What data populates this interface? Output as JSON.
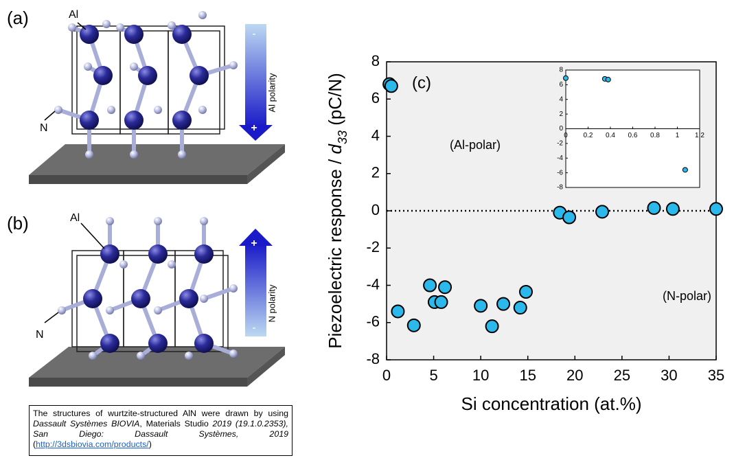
{
  "panel_a": {
    "label": "(a)",
    "atoms": [
      "Al",
      "N"
    ],
    "polarity": "Al polarity",
    "top_sign": "-",
    "bottom_sign": "+"
  },
  "panel_b": {
    "label": "(b)",
    "atoms": [
      "Al",
      "N"
    ],
    "polarity": "N polarity",
    "top_sign": "+",
    "bottom_sign": "-"
  },
  "caption": {
    "parts": [
      "The structures of wurtzite-structured AlN were drawn by using ",
      "Dassault Systèmes BIOVIA",
      ", Materials Studio ",
      "2019 (19.1.0.2353), San Diego: Dassault Systèmes, 2019",
      " (",
      "http://3dsbiovia.com/products/",
      ")"
    ]
  },
  "chart_data": [
    {
      "type": "scatter",
      "x_label": "Si concentration (at.%)",
      "y_label": [
        "Piezoelectric response / ",
        "d",
        "33",
        " (pC/N)"
      ],
      "annotations": [
        "(c)",
        "(Al-polar)",
        "(N-polar)"
      ],
      "x": [
        0.3,
        0.5,
        1.2,
        2.9,
        4.6,
        5.1,
        5.8,
        6.2,
        10.0,
        11.2,
        12.4,
        14.2,
        14.8,
        18.4,
        19.4,
        22.9,
        28.4,
        30.4,
        35.0
      ],
      "values": [
        6.8,
        6.7,
        -5.4,
        -6.15,
        -4.0,
        -4.9,
        -4.9,
        -4.1,
        -5.1,
        -6.2,
        -5.0,
        -5.2,
        -4.35,
        -0.1,
        -0.35,
        -0.05,
        0.15,
        0.1,
        0.1
      ],
      "color": "#2bb8ea",
      "background": "#f0f0f0",
      "xlim": [
        0,
        35
      ],
      "xticks": [
        0,
        5,
        10,
        15,
        20,
        25,
        30,
        35
      ],
      "ylim": [
        -8,
        8
      ],
      "yticks": [
        -8,
        -6,
        -4,
        -2,
        0,
        2,
        4,
        6,
        8
      ],
      "hline": {
        "value": 0,
        "style": "dotted"
      }
    },
    {
      "type": "scatter",
      "x": [
        0,
        0.35,
        0.38,
        1.07
      ],
      "values": [
        6.9,
        6.8,
        6.7,
        -5.6
      ],
      "color": "#2bb8ea",
      "background": "#ffffff",
      "xlim": [
        0,
        1.2
      ],
      "xticks": [
        0,
        0.2,
        0.4,
        0.6,
        0.8,
        1,
        1.2
      ],
      "ylim": [
        -8,
        8
      ],
      "yticks": [
        -8,
        -6,
        -4,
        -2,
        0,
        2,
        4,
        6,
        8
      ],
      "xaxis_at": 0
    }
  ]
}
